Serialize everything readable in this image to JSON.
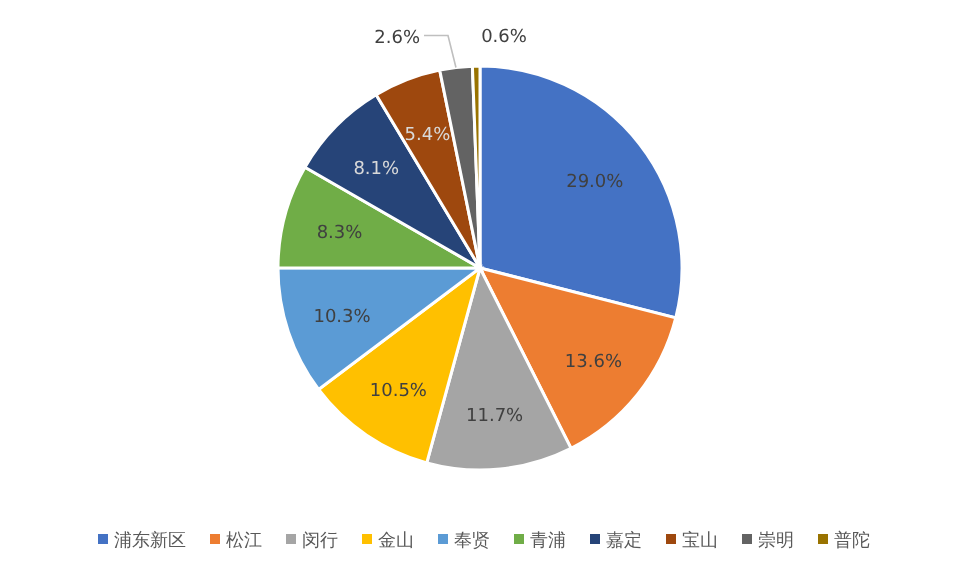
{
  "chart_data": {
    "type": "pie",
    "categories": [
      "浦东新区",
      "松江",
      "闵行",
      "金山",
      "奉贤",
      "青浦",
      "嘉定",
      "宝山",
      "崇明",
      "普陀"
    ],
    "values": [
      29.0,
      13.6,
      11.7,
      10.5,
      10.3,
      8.3,
      8.1,
      5.4,
      2.6,
      0.6
    ],
    "colors": [
      "#4472c4",
      "#ed7d31",
      "#a5a5a5",
      "#ffc000",
      "#5b9bd5",
      "#70ad47",
      "#264478",
      "#9e480e",
      "#636363",
      "#997300"
    ],
    "value_labels": [
      "29.0%",
      "13.6%",
      "11.7%",
      "10.5%",
      "10.3%",
      "8.3%",
      "8.1%",
      "5.4%",
      "2.6%",
      "0.6%"
    ],
    "legend": "bottom"
  }
}
